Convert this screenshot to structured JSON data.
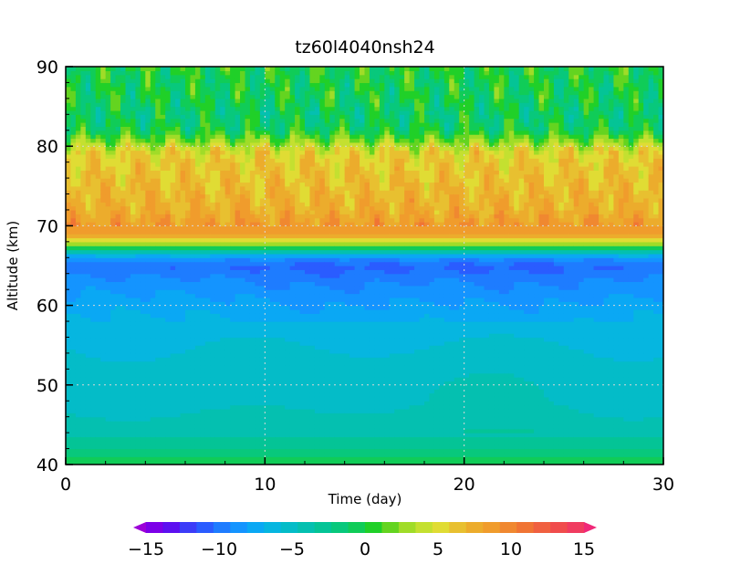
{
  "chart_data": {
    "type": "heatmap",
    "title": "tz60l4040nsh24",
    "xlabel": "Time (day)",
    "ylabel": "Altitude (km)",
    "xlim": [
      0,
      30
    ],
    "ylim": [
      40,
      90
    ],
    "x_ticks": [
      "0",
      "10",
      "20",
      "30"
    ],
    "y_ticks": [
      "40",
      "50",
      "60",
      "70",
      "80",
      "90"
    ],
    "grid": true,
    "colorbar": {
      "orientation": "horizontal",
      "placement": "bottom",
      "range": [
        -15,
        15
      ],
      "step": 1.25,
      "extend": "both",
      "tick_labels": [
        "−15",
        "−10",
        "−5",
        "0",
        "5",
        "10",
        "15"
      ],
      "colors": [
        "#9c00d8",
        "#7c00e8",
        "#5c10f0",
        "#3c3cf8",
        "#2a5cff",
        "#1e7cff",
        "#1494ff",
        "#0aa8f4",
        "#06b6e0",
        "#04bcc8",
        "#04c0b0",
        "#04c496",
        "#08c87c",
        "#10cc58",
        "#20d028",
        "#64d420",
        "#a0dc28",
        "#c4e030",
        "#e0dc34",
        "#e8c030",
        "#ecac2c",
        "#f09c2c",
        "#f08830",
        "#f07434",
        "#f06040",
        "#f04c4c",
        "#f03c60",
        "#f02878"
      ]
    },
    "profile": {
      "altitudes_km": [
        40,
        41,
        42,
        45,
        48,
        52,
        56,
        59,
        61,
        63,
        64,
        65,
        66,
        66.8,
        67.5,
        68,
        68.8,
        70,
        72,
        74,
        76,
        78,
        79.5,
        80.5,
        82,
        84,
        86,
        88,
        90
      ],
      "values": [
        0,
        -1,
        -3,
        -4.5,
        -5.5,
        -5.8,
        -6.5,
        -7.5,
        -8.5,
        -9.5,
        -10.3,
        -11,
        -9,
        -4,
        1,
        5,
        8.5,
        9.5,
        8,
        7.5,
        7,
        6.5,
        5.5,
        3,
        -0.5,
        -1.5,
        -0.5,
        -0.5,
        0
      ],
      "note": ""
    }
  }
}
